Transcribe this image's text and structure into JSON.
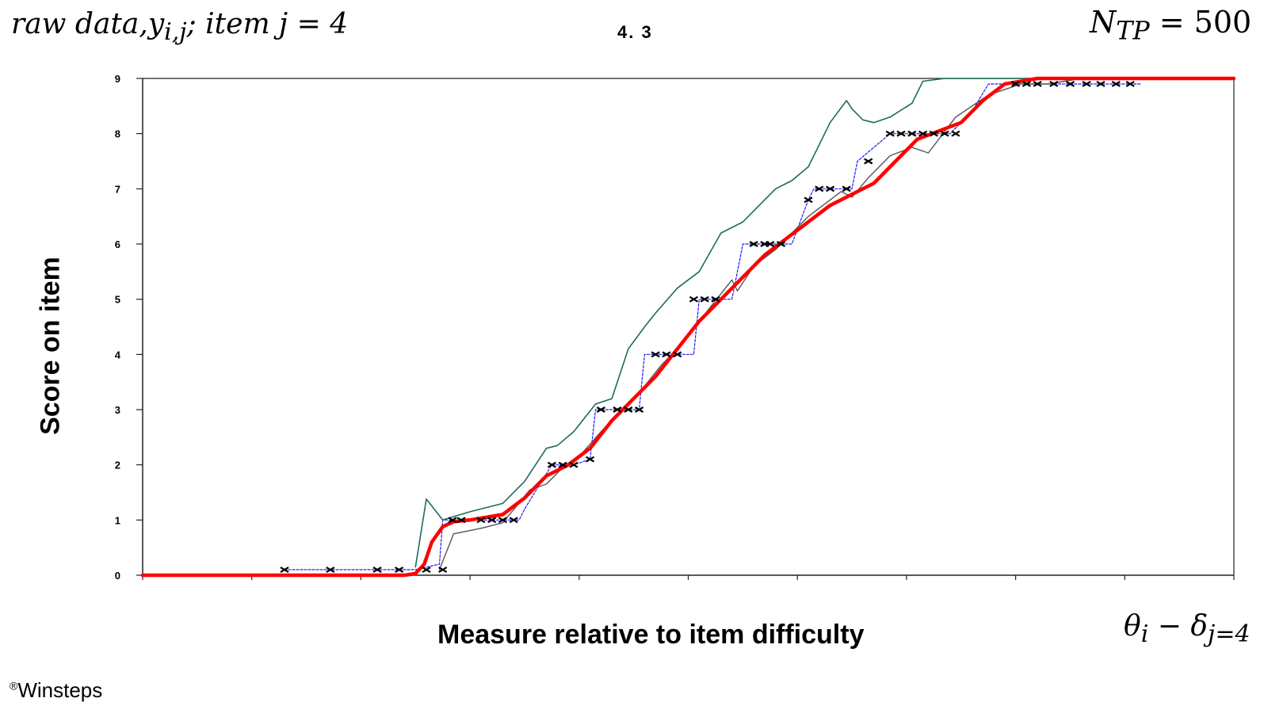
{
  "header": {
    "left_text": "raw data,",
    "left_var": "y",
    "left_sub": "i,j",
    "left_tail": "; item j = 4",
    "chart_number": "4. 3",
    "right_var": "N",
    "right_sub": "TP",
    "right_tail": " = 500"
  },
  "footer": {
    "x_math_theta": "θ",
    "x_math_sub_i": "i",
    "x_math_minus": " − ",
    "x_math_delta": "δ",
    "x_math_sub_j": "j=4",
    "credit_mark": "®",
    "credit_text": "Winsteps"
  },
  "chart_data": {
    "type": "line",
    "title": "4. 3",
    "xlabel": "Measure relative to item difficulty",
    "ylabel": "Score on item",
    "ylim": [
      0,
      9
    ],
    "yticks": [
      "0",
      "1",
      "2",
      "3",
      "4",
      "5",
      "6",
      "7",
      "8",
      "9"
    ],
    "xlim": [
      0,
      10
    ],
    "grid": false,
    "colors": {
      "expected": "#ff0000",
      "empirical": "#1a1aff",
      "upper": "#1e6b5e",
      "lower": "#555555",
      "points": "#000000"
    },
    "series": [
      {
        "role": "expected",
        "x": [
          0,
          2.0,
          2.4,
          2.5,
          2.58,
          2.65,
          2.75,
          2.85,
          3.0,
          3.3,
          3.5,
          3.7,
          3.9,
          4.1,
          4.3,
          4.5,
          4.7,
          4.9,
          5.1,
          5.3,
          5.5,
          5.7,
          5.9,
          6.1,
          6.3,
          6.5,
          6.7,
          6.9,
          7.1,
          7.3,
          7.5,
          7.7,
          7.9,
          8.2,
          8.4,
          8.6,
          8.9,
          10
        ],
        "y": [
          0,
          0,
          0,
          0.03,
          0.2,
          0.6,
          0.88,
          0.97,
          1.0,
          1.1,
          1.4,
          1.8,
          2.0,
          2.3,
          2.8,
          3.2,
          3.6,
          4.1,
          4.6,
          5.0,
          5.4,
          5.8,
          6.1,
          6.4,
          6.7,
          6.9,
          7.1,
          7.5,
          7.9,
          8.05,
          8.2,
          8.6,
          8.9,
          9.0,
          9.0,
          9.0,
          9.0,
          9.0
        ]
      },
      {
        "role": "empirical",
        "x": [
          1.3,
          2.5,
          2.72,
          2.75,
          3.1,
          3.45,
          3.5,
          3.75,
          3.95,
          4.1,
          4.15,
          4.55,
          4.6,
          4.72,
          5.05,
          5.1,
          5.4,
          5.5,
          5.95,
          6.1,
          6.15,
          6.5,
          6.55,
          6.85,
          7.0,
          7.2,
          7.4,
          7.6,
          7.75,
          8.05,
          8.2,
          8.65,
          8.75,
          9.15
        ],
        "y": [
          0.1,
          0.1,
          0.2,
          1.0,
          1.0,
          1.0,
          1.2,
          2.0,
          2.0,
          2.1,
          3.0,
          3.0,
          4.0,
          4.0,
          4.0,
          5.0,
          5.0,
          6.0,
          6.0,
          6.8,
          7.0,
          7.0,
          7.5,
          8.0,
          8.0,
          8.0,
          8.0,
          8.4,
          8.9,
          8.9,
          8.9,
          8.9,
          8.9,
          8.9
        ]
      },
      {
        "role": "upper",
        "x": [
          2.5,
          2.6,
          2.75,
          2.83,
          3.0,
          3.3,
          3.5,
          3.7,
          3.8,
          3.95,
          4.15,
          4.3,
          4.45,
          4.6,
          4.7,
          4.9,
          5.1,
          5.3,
          5.5,
          5.6,
          5.8,
          5.95,
          6.1,
          6.3,
          6.45,
          6.5,
          6.6,
          6.7,
          6.85,
          7.05,
          7.15,
          7.35,
          7.55,
          7.85,
          8.0,
          8.2,
          8.5,
          8.8,
          9.1
        ],
        "y": [
          0.15,
          1.38,
          1.0,
          1.05,
          1.15,
          1.3,
          1.7,
          2.3,
          2.35,
          2.6,
          3.1,
          3.2,
          4.1,
          4.5,
          4.75,
          5.2,
          5.5,
          6.2,
          6.4,
          6.6,
          7.0,
          7.15,
          7.4,
          8.2,
          8.6,
          8.45,
          8.25,
          8.2,
          8.3,
          8.55,
          8.95,
          9.0,
          9.0,
          9.0,
          9.0,
          9.0,
          9.0,
          9.0,
          9.0
        ]
      },
      {
        "role": "lower",
        "x": [
          2.72,
          2.85,
          3.1,
          3.3,
          3.55,
          3.7,
          3.85,
          4.0,
          4.2,
          4.35,
          4.55,
          4.75,
          4.9,
          5.1,
          5.3,
          5.4,
          5.45,
          5.6,
          5.8,
          5.95,
          6.1,
          6.3,
          6.4,
          6.5,
          6.65,
          6.85,
          7.05,
          7.2,
          7.45,
          7.75,
          8.05,
          8.3,
          8.6,
          9.0
        ],
        "y": [
          0.1,
          0.75,
          0.85,
          0.95,
          1.55,
          1.65,
          1.95,
          2.15,
          2.6,
          2.9,
          3.3,
          3.8,
          4.1,
          4.6,
          5.1,
          5.35,
          5.15,
          5.6,
          5.9,
          6.2,
          6.5,
          6.8,
          6.95,
          6.85,
          7.2,
          7.6,
          7.75,
          7.65,
          8.3,
          8.7,
          8.9,
          8.9,
          9.0,
          9.0
        ]
      },
      {
        "role": "points",
        "x": [
          1.3,
          1.72,
          2.15,
          2.35,
          2.6,
          2.75,
          2.84,
          2.92,
          3.1,
          3.2,
          3.3,
          3.4,
          3.75,
          3.85,
          3.95,
          4.1,
          4.2,
          4.35,
          4.45,
          4.55,
          4.7,
          4.8,
          4.9,
          5.05,
          5.15,
          5.25,
          5.6,
          5.7,
          5.75,
          5.85,
          6.1,
          6.2,
          6.3,
          6.45,
          6.65,
          6.85,
          6.95,
          7.05,
          7.15,
          7.25,
          7.35,
          7.45,
          8.0,
          8.1,
          8.2,
          8.35,
          8.5,
          8.65,
          8.78,
          8.92,
          9.05
        ],
        "y": [
          0.1,
          0.1,
          0.1,
          0.1,
          0.1,
          0.1,
          1.0,
          1.0,
          1.0,
          1.0,
          1.0,
          1.0,
          2.0,
          2.0,
          2.0,
          2.1,
          3.0,
          3.0,
          3.0,
          3.0,
          4.0,
          4.0,
          4.0,
          5.0,
          5.0,
          5.0,
          6.0,
          6.0,
          6.0,
          6.0,
          6.8,
          7.0,
          7.0,
          7.0,
          7.5,
          8.0,
          8.0,
          8.0,
          8.0,
          8.0,
          8.0,
          8.0,
          8.9,
          8.9,
          8.9,
          8.9,
          8.9,
          8.9,
          8.9,
          8.9,
          8.9
        ]
      }
    ]
  }
}
